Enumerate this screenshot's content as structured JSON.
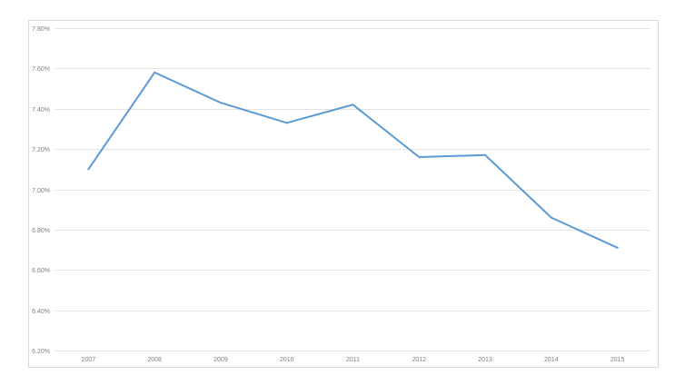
{
  "chart_data": {
    "type": "line",
    "title": "",
    "xlabel": "",
    "ylabel": "",
    "categories": [
      "2007",
      "2008",
      "2009",
      "2010",
      "2011",
      "2012",
      "2013",
      "2014",
      "2015"
    ],
    "series": [
      {
        "values": [
          7.1,
          7.58,
          7.43,
          7.33,
          7.42,
          7.16,
          7.17,
          6.86,
          6.71
        ],
        "color": "#5b9bd5"
      }
    ],
    "ylim": [
      6.2,
      7.8
    ],
    "y_ticks": [
      6.2,
      6.4,
      6.6,
      6.8,
      7.0,
      7.2,
      7.4,
      7.6,
      7.8
    ],
    "y_tick_labels": [
      "6.20%",
      "6.40%",
      "6.60%",
      "6.80%",
      "7.00%",
      "7.20%",
      "7.40%",
      "7.60%",
      "7.80%"
    ],
    "grid": true,
    "legend": "none"
  }
}
